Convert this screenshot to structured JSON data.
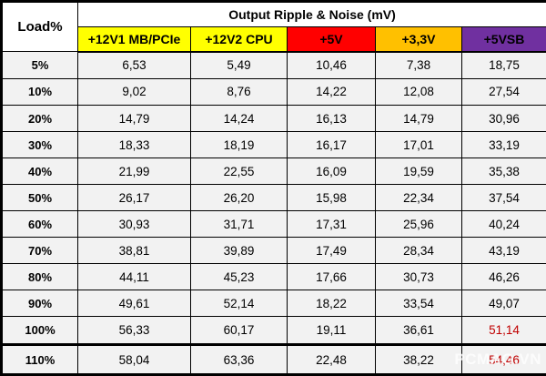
{
  "table": {
    "corner_label": "Load%",
    "title": "Output Ripple & Noise (mV)",
    "columns": [
      {
        "label": "+12V1 MB/PCIe",
        "bg": "#FFFF00",
        "fg": "#000000"
      },
      {
        "label": "+12V2 CPU",
        "bg": "#FFFF00",
        "fg": "#000000"
      },
      {
        "label": "+5V",
        "bg": "#FF0000",
        "fg": "#000000"
      },
      {
        "label": "+3,3V",
        "bg": "#FFC000",
        "fg": "#000000"
      },
      {
        "label": "+5VSB",
        "bg": "#7030A0",
        "fg": "#000000"
      }
    ],
    "rows": [
      {
        "load": "5%",
        "values": [
          "6,53",
          "5,49",
          "10,46",
          "7,38",
          "18,75"
        ]
      },
      {
        "load": "10%",
        "values": [
          "9,02",
          "8,76",
          "14,22",
          "12,08",
          "27,54"
        ]
      },
      {
        "load": "20%",
        "values": [
          "14,79",
          "14,24",
          "16,13",
          "14,79",
          "30,96"
        ]
      },
      {
        "load": "30%",
        "values": [
          "18,33",
          "18,19",
          "16,17",
          "17,01",
          "33,19"
        ]
      },
      {
        "load": "40%",
        "values": [
          "21,99",
          "22,55",
          "16,09",
          "19,59",
          "35,38"
        ]
      },
      {
        "load": "50%",
        "values": [
          "26,17",
          "26,20",
          "15,98",
          "22,34",
          "37,54"
        ]
      },
      {
        "load": "60%",
        "values": [
          "30,93",
          "31,71",
          "17,31",
          "25,96",
          "40,24"
        ]
      },
      {
        "load": "70%",
        "values": [
          "38,81",
          "39,89",
          "17,49",
          "28,34",
          "43,19"
        ]
      },
      {
        "load": "80%",
        "values": [
          "44,11",
          "45,23",
          "17,66",
          "30,73",
          "46,26"
        ]
      },
      {
        "load": "90%",
        "values": [
          "49,61",
          "52,14",
          "18,22",
          "33,54",
          "49,07"
        ]
      },
      {
        "load": "100%",
        "values": [
          "56,33",
          "60,17",
          "19,11",
          "36,61",
          "51,14"
        ],
        "red_indices": [
          4
        ]
      },
      {
        "load": "110%",
        "values": [
          "58,04",
          "63,36",
          "22,48",
          "38,22",
          "54,46"
        ],
        "red_indices": [
          4
        ],
        "thick_top": true
      }
    ],
    "colors": {
      "grid": "#000000",
      "cell_bg": "#F2F2F2",
      "header_bg": "#FFFFFF",
      "warn_text": "#C00000"
    },
    "watermark": "PCMAG.VN"
  },
  "chart_data": {
    "type": "table",
    "title": "Output Ripple & Noise (mV)",
    "row_header": "Load%",
    "categories": [
      "5%",
      "10%",
      "20%",
      "30%",
      "40%",
      "50%",
      "60%",
      "70%",
      "80%",
      "90%",
      "100%",
      "110%"
    ],
    "series": [
      {
        "name": "+12V1 MB/PCIe",
        "values": [
          6.53,
          9.02,
          14.79,
          18.33,
          21.99,
          26.17,
          30.93,
          38.81,
          44.11,
          49.61,
          56.33,
          58.04
        ]
      },
      {
        "name": "+12V2 CPU",
        "values": [
          5.49,
          8.76,
          14.24,
          18.19,
          22.55,
          26.2,
          31.71,
          39.89,
          45.23,
          52.14,
          60.17,
          63.36
        ]
      },
      {
        "name": "+5V",
        "values": [
          10.46,
          14.22,
          16.13,
          16.17,
          16.09,
          15.98,
          17.31,
          17.49,
          17.66,
          18.22,
          19.11,
          22.48
        ]
      },
      {
        "name": "+3,3V",
        "values": [
          7.38,
          12.08,
          14.79,
          17.01,
          19.59,
          22.34,
          25.96,
          28.34,
          30.73,
          33.54,
          36.61,
          38.22
        ]
      },
      {
        "name": "+5VSB",
        "values": [
          18.75,
          27.54,
          30.96,
          33.19,
          35.38,
          37.54,
          40.24,
          43.19,
          46.26,
          49.07,
          51.14,
          54.46
        ]
      }
    ],
    "highlighted_values": [
      {
        "category": "100%",
        "series": "+5VSB",
        "value": 51.14,
        "color": "#C00000"
      },
      {
        "category": "110%",
        "series": "+5VSB",
        "value": 54.46,
        "color": "#C00000"
      }
    ]
  }
}
